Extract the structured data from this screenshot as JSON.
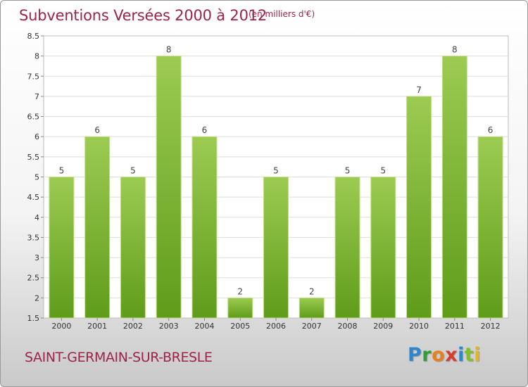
{
  "chart_data": {
    "type": "bar",
    "title": "Subventions Versées 2000 à 2012",
    "subtitle": "(en milliers d'€)",
    "categories": [
      "2000",
      "2001",
      "2002",
      "2003",
      "2004",
      "2005",
      "2006",
      "2007",
      "2008",
      "2009",
      "2010",
      "2011",
      "2012"
    ],
    "values": [
      5,
      6,
      5,
      8,
      6,
      2,
      5,
      2,
      5,
      5,
      7,
      8,
      6
    ],
    "ylim": [
      1.5,
      8.5
    ],
    "yticks": [
      1.5,
      2,
      2.5,
      3,
      3.5,
      4,
      4.5,
      5,
      5.5,
      6,
      6.5,
      7,
      7.5,
      8,
      8.5
    ],
    "grid": true,
    "bar_color_top": "#9ccb52",
    "bar_color_bottom": "#5f9c1a"
  },
  "footer": {
    "town": "SAINT-GERMAIN-SUR-BRESLE",
    "logo": [
      "P",
      "r",
      "o",
      "x",
      "i",
      "t",
      "i"
    ]
  }
}
